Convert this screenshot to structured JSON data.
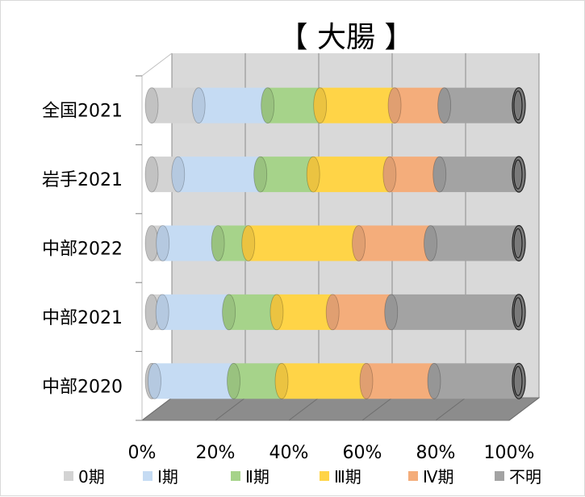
{
  "chart_data": {
    "type": "bar",
    "orientation": "horizontal",
    "stacked": "percent",
    "title": "【 大腸 】",
    "categories": [
      "全国2021",
      "岩手2021",
      "中部2022",
      "中部2021",
      "中部2020"
    ],
    "series": [
      {
        "name": "0期",
        "color": "#d3d3d3",
        "values": [
          0.17,
          0.09,
          0.04,
          0.04,
          0.01
        ]
      },
      {
        "name": "Ⅰ期",
        "color": "#c5dbf3",
        "values": [
          0.25,
          0.28,
          0.2,
          0.25,
          0.28
        ]
      },
      {
        "name": "Ⅱ期",
        "color": "#a6d38a",
        "values": [
          0.19,
          0.18,
          0.11,
          0.18,
          0.17
        ]
      },
      {
        "name": "Ⅲ期",
        "color": "#ffd447",
        "values": [
          0.27,
          0.26,
          0.4,
          0.21,
          0.3
        ]
      },
      {
        "name": "Ⅳ期",
        "color": "#f4ad7b",
        "values": [
          0.18,
          0.17,
          0.26,
          0.22,
          0.24
        ]
      },
      {
        "name": "不明",
        "color": "#a3a3a3",
        "values": [
          0.27,
          0.27,
          0.32,
          0.48,
          0.3
        ]
      }
    ],
    "xlim": [
      0,
      1
    ],
    "x_ticks": [
      "0%",
      "20%",
      "40%",
      "60%",
      "80%",
      "100%"
    ],
    "grid": true,
    "legend": "bottom",
    "style_3d": true
  }
}
